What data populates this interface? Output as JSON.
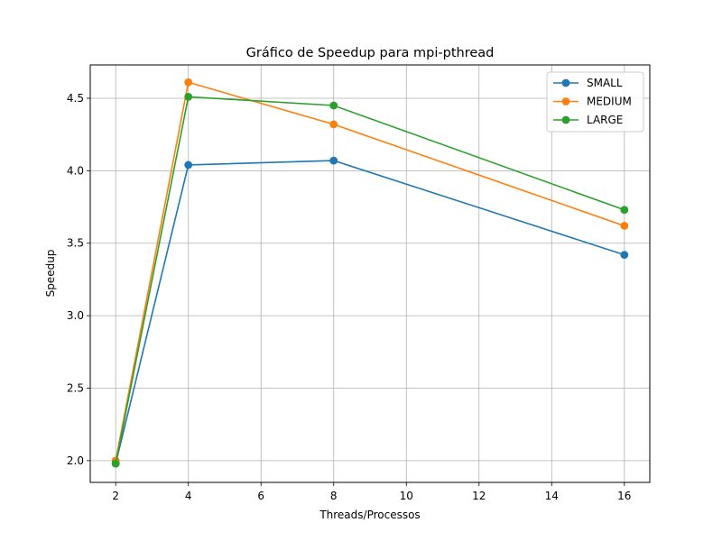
{
  "chart_data": {
    "type": "line",
    "title": "Gráfico de Speedup para mpi-pthread",
    "xlabel": "Threads/Processos",
    "ylabel": "Speedup",
    "x": [
      2,
      4,
      8,
      16
    ],
    "xlim": [
      1.3,
      16.7
    ],
    "ylim": [
      1.85,
      4.73
    ],
    "xticks": [
      2,
      4,
      6,
      8,
      10,
      12,
      14,
      16
    ],
    "yticks": [
      2.0,
      2.5,
      3.0,
      3.5,
      4.0,
      4.5
    ],
    "grid": true,
    "legend_position": "top-right",
    "series": [
      {
        "name": "SMALL",
        "color": "#1f77b4",
        "values": [
          1.98,
          4.04,
          4.07,
          3.42
        ]
      },
      {
        "name": "MEDIUM",
        "color": "#ff7f0e",
        "values": [
          2.0,
          4.61,
          4.32,
          3.62
        ]
      },
      {
        "name": "LARGE",
        "color": "#2ca02c",
        "values": [
          1.98,
          4.51,
          4.45,
          3.73
        ]
      }
    ]
  }
}
